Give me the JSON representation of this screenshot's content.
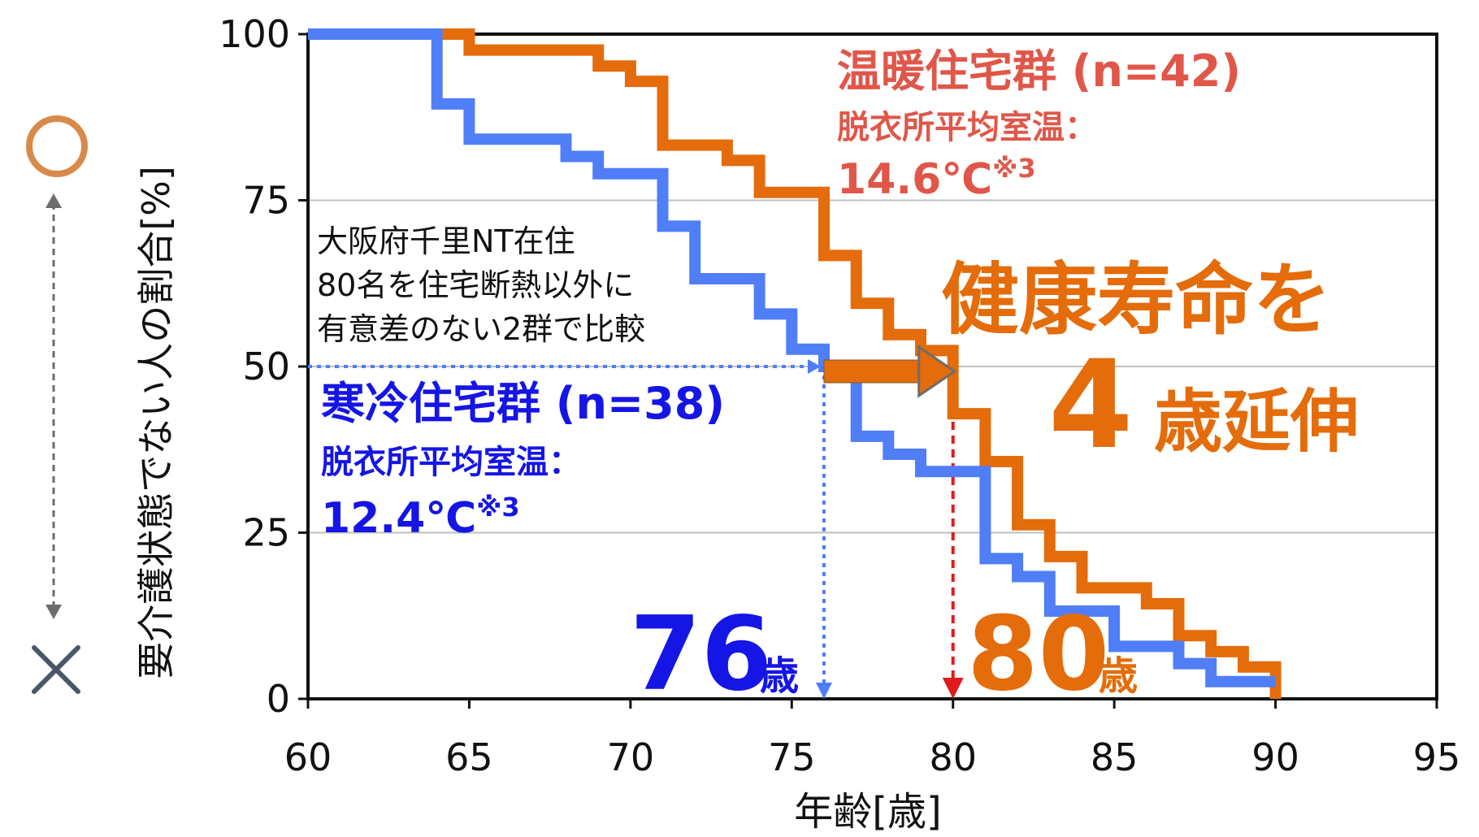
{
  "chart_data": {
    "type": "line",
    "subtype": "step",
    "xlabel": "年齢[歳]",
    "ylabel": "要介護状態でない人の割合[%]",
    "xlim": [
      60,
      95
    ],
    "ylim": [
      0,
      100
    ],
    "x_ticks": [
      "60",
      "65",
      "70",
      "75",
      "80",
      "85",
      "90",
      "95"
    ],
    "y_ticks": [
      "0",
      "25",
      "50",
      "75",
      "100"
    ],
    "grid": "horizontal",
    "series": [
      {
        "name": "温暖住宅群 (n=42)",
        "color": "#E46C0A",
        "points": [
          [
            60,
            100
          ],
          [
            65,
            100
          ],
          [
            65,
            97.6
          ],
          [
            69,
            97.6
          ],
          [
            69,
            95.2
          ],
          [
            70,
            95.2
          ],
          [
            70,
            92.9
          ],
          [
            71,
            92.9
          ],
          [
            71,
            83.3
          ],
          [
            73,
            83.3
          ],
          [
            73,
            81
          ],
          [
            74,
            81
          ],
          [
            74,
            76.2
          ],
          [
            76,
            76.2
          ],
          [
            76,
            66.7
          ],
          [
            77,
            66.7
          ],
          [
            77,
            59.5
          ],
          [
            78,
            59.5
          ],
          [
            78,
            54.8
          ],
          [
            79,
            54.8
          ],
          [
            79,
            52.4
          ],
          [
            80,
            52.4
          ],
          [
            80,
            42.9
          ],
          [
            81,
            42.9
          ],
          [
            81,
            35.7
          ],
          [
            82,
            35.7
          ],
          [
            82,
            26.2
          ],
          [
            83,
            26.2
          ],
          [
            83,
            21.4
          ],
          [
            84,
            21.4
          ],
          [
            84,
            16.7
          ],
          [
            86,
            16.7
          ],
          [
            86,
            14.3
          ],
          [
            87,
            14.3
          ],
          [
            87,
            9.5
          ],
          [
            88,
            9.5
          ],
          [
            88,
            7.1
          ],
          [
            89,
            7.1
          ],
          [
            89,
            4.8
          ],
          [
            90,
            4.8
          ],
          [
            90,
            0
          ]
        ]
      },
      {
        "name": "寒冷住宅群 (n=38)",
        "color": "#4F7EF7",
        "points": [
          [
            60,
            100
          ],
          [
            64,
            100
          ],
          [
            64,
            89.5
          ],
          [
            65,
            89.5
          ],
          [
            65,
            84.2
          ],
          [
            68,
            84.2
          ],
          [
            68,
            81.6
          ],
          [
            69,
            81.6
          ],
          [
            69,
            79
          ],
          [
            71,
            79
          ],
          [
            71,
            71.1
          ],
          [
            72,
            71.1
          ],
          [
            72,
            63.2
          ],
          [
            74,
            63.2
          ],
          [
            74,
            57.9
          ],
          [
            75,
            57.9
          ],
          [
            75,
            52.6
          ],
          [
            76,
            52.6
          ],
          [
            76,
            50
          ],
          [
            77,
            50
          ],
          [
            77,
            39.5
          ],
          [
            78,
            39.5
          ],
          [
            78,
            36.8
          ],
          [
            79,
            36.8
          ],
          [
            79,
            34.2
          ],
          [
            81,
            34.2
          ],
          [
            81,
            21.1
          ],
          [
            82,
            21.1
          ],
          [
            82,
            18.4
          ],
          [
            83,
            18.4
          ],
          [
            83,
            13.2
          ],
          [
            85,
            13.2
          ],
          [
            85,
            7.9
          ],
          [
            87,
            7.9
          ],
          [
            87,
            5.3
          ],
          [
            88,
            5.3
          ],
          [
            88,
            2.6
          ],
          [
            90,
            2.6
          ]
        ]
      }
    ],
    "markers": {
      "cold_median_age": 76,
      "warm_median_age": 80,
      "median_level": 50
    },
    "annotations": {
      "warm_title": "温暖住宅群 (n=42)",
      "warm_temp_label": "脱衣所平均室温：",
      "warm_temp_value": "14.6℃",
      "warm_temp_note": "※3",
      "cold_title": "寒冷住宅群 (n=38)",
      "cold_temp_label": "脱衣所平均室温：",
      "cold_temp_value": "12.4℃",
      "cold_temp_note": "※3",
      "study_line1": "大阪府千里NT在住",
      "study_line2": "80名を住宅断熱以外に",
      "study_line3": "有意差のない2群で比較",
      "headline1": "健康寿命を",
      "headline2_num": "4",
      "headline2_text": "歳延伸",
      "cold_age_num": "76",
      "cold_age_unit": "歳",
      "warm_age_num": "80",
      "warm_age_unit": "歳",
      "legend_good_symbol": "○",
      "legend_bad_symbol": "×"
    }
  },
  "colors": {
    "warm": "#E46C0A",
    "warm_text": "#E0574A",
    "cold_line": "#4F7EF7",
    "cold_text": "#1515E6",
    "red_marker": "#E11B1B",
    "grey": "#6D6D6D"
  }
}
